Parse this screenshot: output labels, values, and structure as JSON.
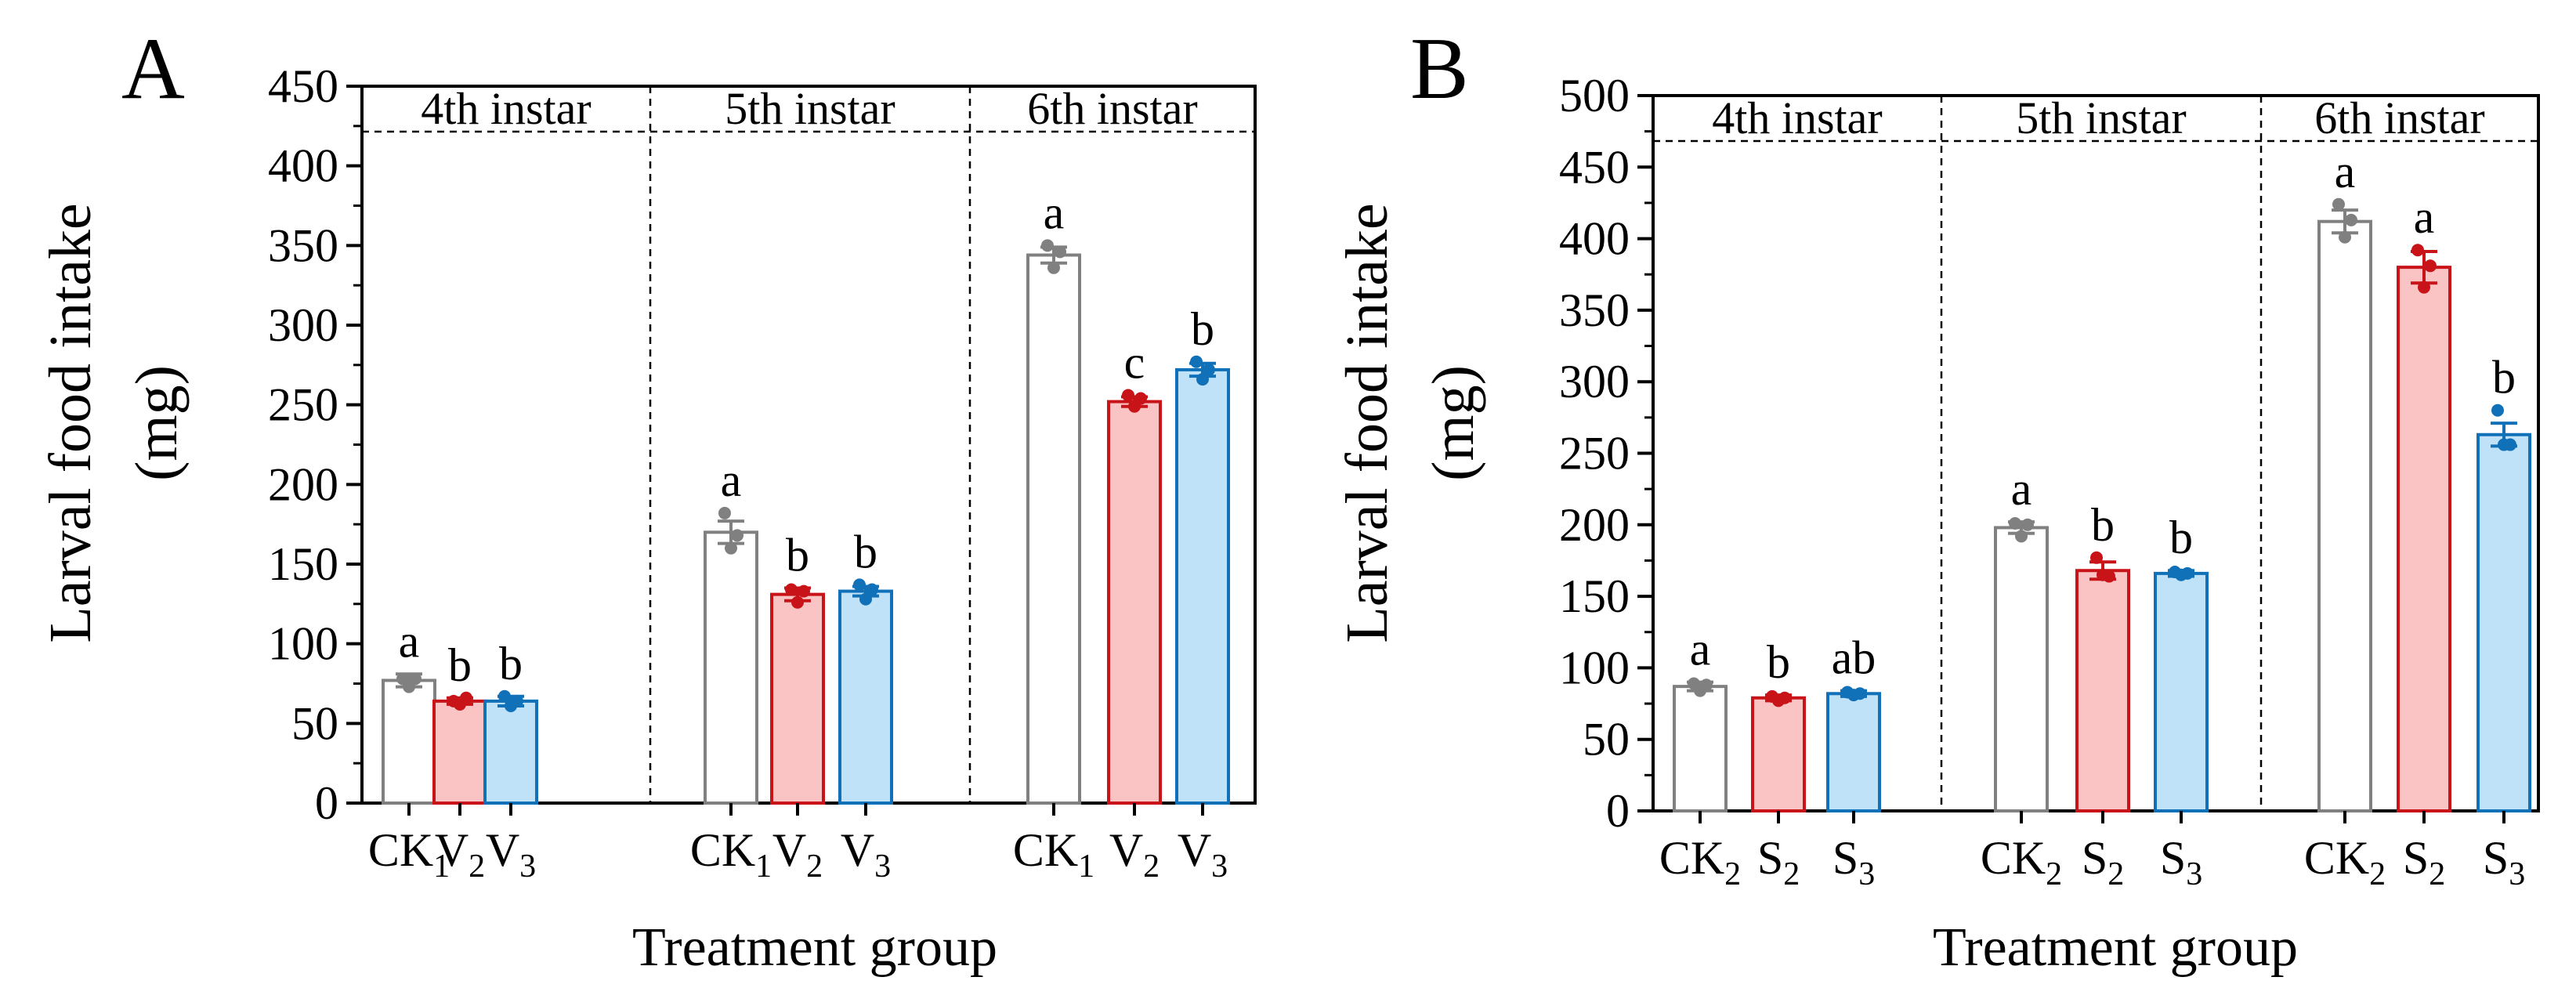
{
  "figure": {
    "ylabel_line1": "Larval food intake",
    "ylabel_line2": "(mg)",
    "xlabel": "Treatment group"
  },
  "colors": {
    "control_edge": "#808080",
    "control_fill": "#ffffff",
    "v2_edge": "#c81418",
    "v2_fill": "#fbc4c4",
    "v3_edge": "#1070b8",
    "v3_fill": "#bfe2f8"
  },
  "chart_data": [
    {
      "type": "bar",
      "panel": "A",
      "ylim": [
        0,
        450
      ],
      "yticks": [
        0,
        50,
        100,
        150,
        200,
        250,
        300,
        350,
        400,
        450
      ],
      "xlabel": "Treatment group",
      "ylabel": "Larval food intake (mg)",
      "stages": [
        "4th instar",
        "5th instar",
        "6th instar"
      ],
      "series": [
        {
          "name": "CK",
          "sub": "1",
          "role": "control",
          "values": [
            77,
            170,
            344
          ],
          "errors": [
            4,
            7,
            5
          ],
          "letters": [
            "a",
            "a",
            "a"
          ],
          "points": [
            [
              78,
              73,
              78
            ],
            [
              182,
              160,
              168
            ],
            [
              350,
              336,
              346
            ]
          ]
        },
        {
          "name": "V",
          "sub": "2",
          "role": "v2",
          "values": [
            64,
            131,
            252
          ],
          "errors": [
            2,
            4,
            3
          ],
          "letters": [
            "b",
            "b",
            "c"
          ],
          "points": [
            [
              64,
              62,
              66
            ],
            [
              134,
              126,
              133
            ],
            [
              256,
              249,
              254
            ]
          ]
        },
        {
          "name": "V",
          "sub": "3",
          "role": "v3",
          "values": [
            64,
            133,
            272
          ],
          "errors": [
            3,
            3,
            4
          ],
          "letters": [
            "b",
            "b",
            "b"
          ],
          "points": [
            [
              67,
              61,
              64
            ],
            [
              137,
              128,
              134
            ],
            [
              277,
              266,
              272
            ]
          ]
        }
      ]
    },
    {
      "type": "bar",
      "panel": "B",
      "ylim": [
        0,
        500
      ],
      "yticks": [
        0,
        50,
        100,
        150,
        200,
        250,
        300,
        350,
        400,
        450,
        500
      ],
      "xlabel": "Treatment group",
      "ylabel": "Larval food intake (mg)",
      "stages": [
        "4th instar",
        "5th instar",
        "6th instar"
      ],
      "series": [
        {
          "name": "CK",
          "sub": "2",
          "role": "control",
          "values": [
            87,
            198,
            412
          ],
          "errors": [
            3,
            4,
            8
          ],
          "letters": [
            "a",
            "a",
            "a"
          ],
          "points": [
            [
              89,
              84,
              88
            ],
            [
              201,
              192,
              200
            ],
            [
              424,
              401,
              413
            ]
          ]
        },
        {
          "name": "S",
          "sub": "2",
          "role": "v2",
          "values": [
            79,
            168,
            380
          ],
          "errors": [
            2,
            6,
            11
          ],
          "letters": [
            "b",
            "b",
            "a"
          ],
          "points": [
            [
              80,
              77,
              79
            ],
            [
              177,
              165,
              164
            ],
            [
              392,
              366,
              381
            ]
          ]
        },
        {
          "name": "S",
          "sub": "3",
          "role": "v3",
          "values": [
            82,
            166,
            263
          ],
          "errors": [
            2,
            2,
            8
          ],
          "letters": [
            "ab",
            "b",
            "b"
          ],
          "points": [
            [
              83,
              81,
              82
            ],
            [
              167,
              165,
              166
            ],
            [
              280,
              256,
              256
            ]
          ]
        }
      ]
    }
  ]
}
